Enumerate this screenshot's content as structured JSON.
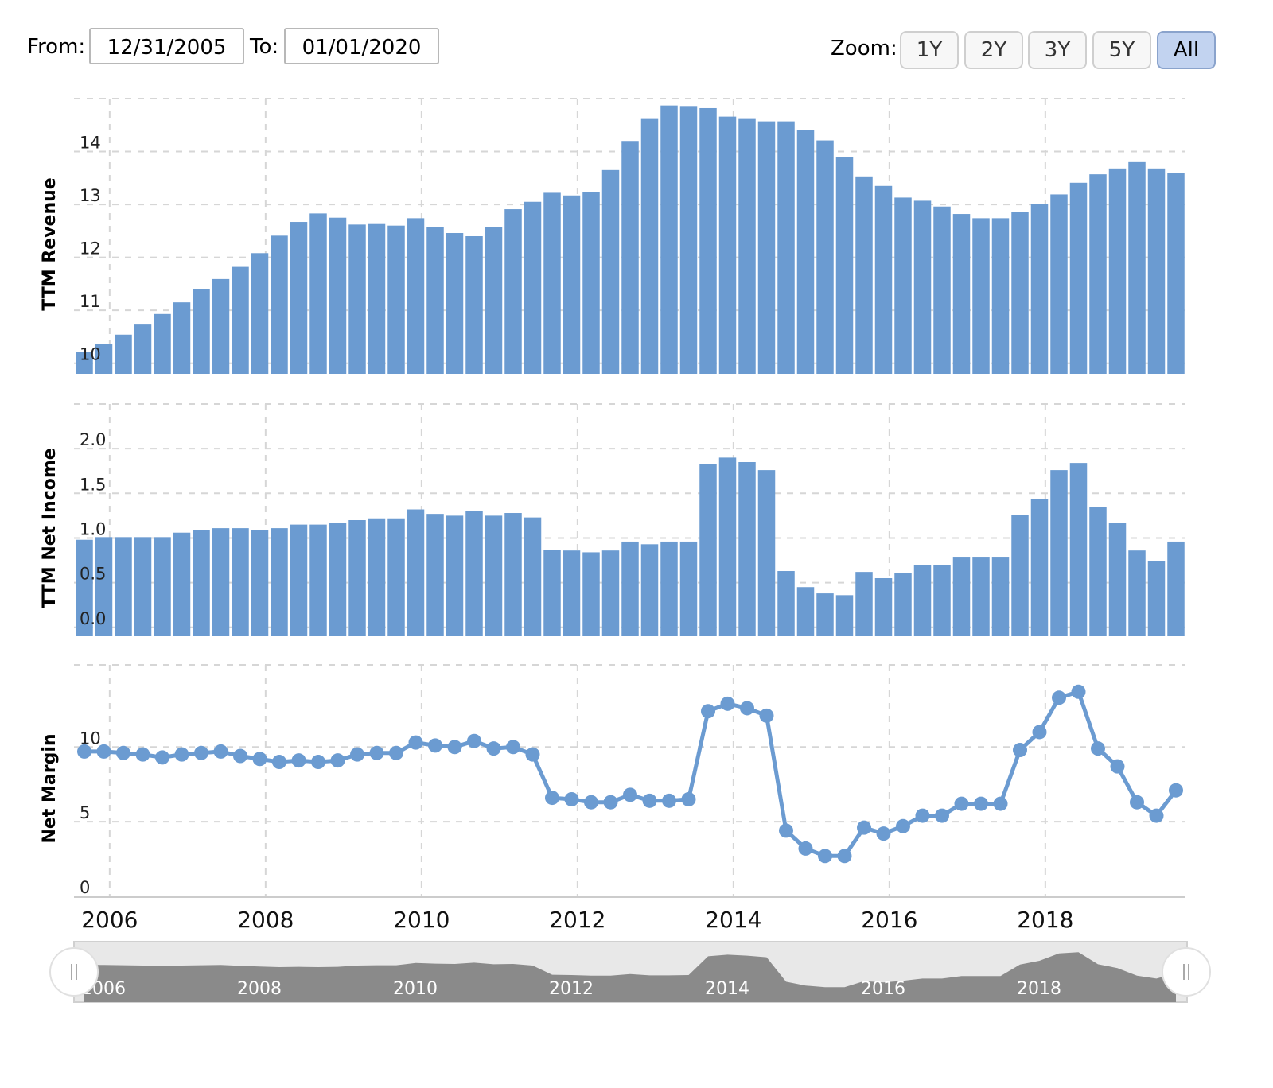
{
  "range": {
    "from_label": "From:",
    "from_value": "12/31/2005",
    "to_label": "To:",
    "to_value": "01/01/2020"
  },
  "zoom": {
    "label": "Zoom:",
    "buttons": [
      "1Y",
      "2Y",
      "3Y",
      "5Y",
      "All"
    ],
    "active": "All"
  },
  "colors": {
    "bar": "#6b9bd1",
    "line": "#6b9bd1",
    "navigator_area": "#8a8a8a",
    "navigator_bg": "#e8e8e8"
  },
  "chart_data": [
    {
      "type": "bar",
      "ylabel": "TTM Revenue",
      "yticks": [
        10,
        11,
        12,
        13,
        14
      ],
      "ylim": [
        9.8,
        15.0
      ],
      "x": [
        "2005-12-31",
        "2006-03-31",
        "2006-06-30",
        "2006-09-30",
        "2006-12-31",
        "2007-03-31",
        "2007-06-30",
        "2007-09-30",
        "2007-12-31",
        "2008-03-31",
        "2008-06-30",
        "2008-09-30",
        "2008-12-31",
        "2009-03-31",
        "2009-06-30",
        "2009-09-30",
        "2009-12-31",
        "2010-03-31",
        "2010-06-30",
        "2010-09-30",
        "2010-12-31",
        "2011-03-31",
        "2011-06-30",
        "2011-09-30",
        "2011-12-31",
        "2012-03-31",
        "2012-06-30",
        "2012-09-30",
        "2012-12-31",
        "2013-03-31",
        "2013-06-30",
        "2013-09-30",
        "2013-12-31",
        "2014-03-31",
        "2014-06-30",
        "2014-09-30",
        "2014-12-31",
        "2015-03-31",
        "2015-06-30",
        "2015-09-30",
        "2015-12-31",
        "2016-03-31",
        "2016-06-30",
        "2016-09-30",
        "2016-12-31",
        "2017-03-31",
        "2017-06-30",
        "2017-09-30",
        "2017-12-31",
        "2018-03-31",
        "2018-06-30",
        "2018-09-30",
        "2018-12-31",
        "2019-03-31",
        "2019-06-30",
        "2019-09-30",
        "2019-12-31"
      ],
      "values": [
        10.21,
        10.37,
        10.54,
        10.73,
        10.93,
        11.15,
        11.4,
        11.59,
        11.82,
        12.08,
        12.41,
        12.67,
        12.83,
        12.75,
        12.62,
        12.63,
        12.6,
        12.74,
        12.58,
        12.46,
        12.4,
        12.57,
        12.91,
        13.05,
        13.22,
        13.17,
        13.24,
        13.65,
        14.2,
        14.63,
        14.87,
        14.86,
        14.82,
        14.66,
        14.63,
        14.57,
        14.57,
        14.41,
        14.21,
        13.9,
        13.53,
        13.35,
        13.13,
        13.07,
        12.96,
        12.82,
        12.74,
        12.74,
        12.86,
        13.01,
        13.19,
        13.41,
        13.57,
        13.68,
        13.8,
        13.68,
        13.59
      ]
    },
    {
      "type": "bar",
      "ylabel": "TTM Net Income",
      "yticks": [
        0.0,
        0.5,
        1.0,
        1.5,
        2.0
      ],
      "ytick_labels": [
        "0.0",
        "0.5",
        "1.0",
        "1.5",
        "2.0"
      ],
      "ylim": [
        -0.1,
        2.5
      ],
      "values": [
        0.98,
        1.01,
        1.01,
        1.01,
        1.01,
        1.06,
        1.09,
        1.11,
        1.11,
        1.09,
        1.11,
        1.15,
        1.15,
        1.17,
        1.2,
        1.22,
        1.22,
        1.32,
        1.27,
        1.25,
        1.3,
        1.25,
        1.28,
        1.23,
        0.87,
        0.86,
        0.84,
        0.86,
        0.96,
        0.93,
        0.96,
        0.96,
        1.83,
        1.9,
        1.85,
        1.76,
        0.63,
        0.45,
        0.38,
        0.36,
        0.62,
        0.55,
        0.61,
        0.7,
        0.7,
        0.79,
        0.79,
        0.79,
        1.26,
        1.44,
        1.76,
        1.84,
        1.35,
        1.17,
        0.86,
        0.74,
        0.96
      ]
    },
    {
      "type": "line",
      "ylabel": "Net Margin",
      "yticks": [
        0,
        5,
        10
      ],
      "ylim": [
        0,
        15.5
      ],
      "values": [
        9.7,
        9.7,
        9.6,
        9.5,
        9.3,
        9.5,
        9.6,
        9.7,
        9.4,
        9.2,
        9.0,
        9.1,
        9.0,
        9.1,
        9.5,
        9.6,
        9.6,
        10.3,
        10.1,
        10.0,
        10.4,
        9.9,
        10.0,
        9.5,
        6.6,
        6.5,
        6.3,
        6.3,
        6.8,
        6.4,
        6.4,
        6.5,
        12.4,
        12.9,
        12.6,
        12.1,
        4.4,
        3.2,
        2.7,
        2.7,
        4.6,
        4.2,
        4.7,
        5.4,
        5.4,
        6.2,
        6.2,
        6.2,
        9.8,
        11.0,
        13.3,
        13.7,
        9.9,
        8.7,
        6.3,
        5.4,
        7.1
      ]
    }
  ],
  "x_axis": {
    "ticks": [
      "2006",
      "2008",
      "2010",
      "2012",
      "2014",
      "2016",
      "2018"
    ]
  },
  "navigator": {
    "ticks": [
      "2006",
      "2008",
      "2010",
      "2012",
      "2014",
      "2016",
      "2018"
    ]
  }
}
